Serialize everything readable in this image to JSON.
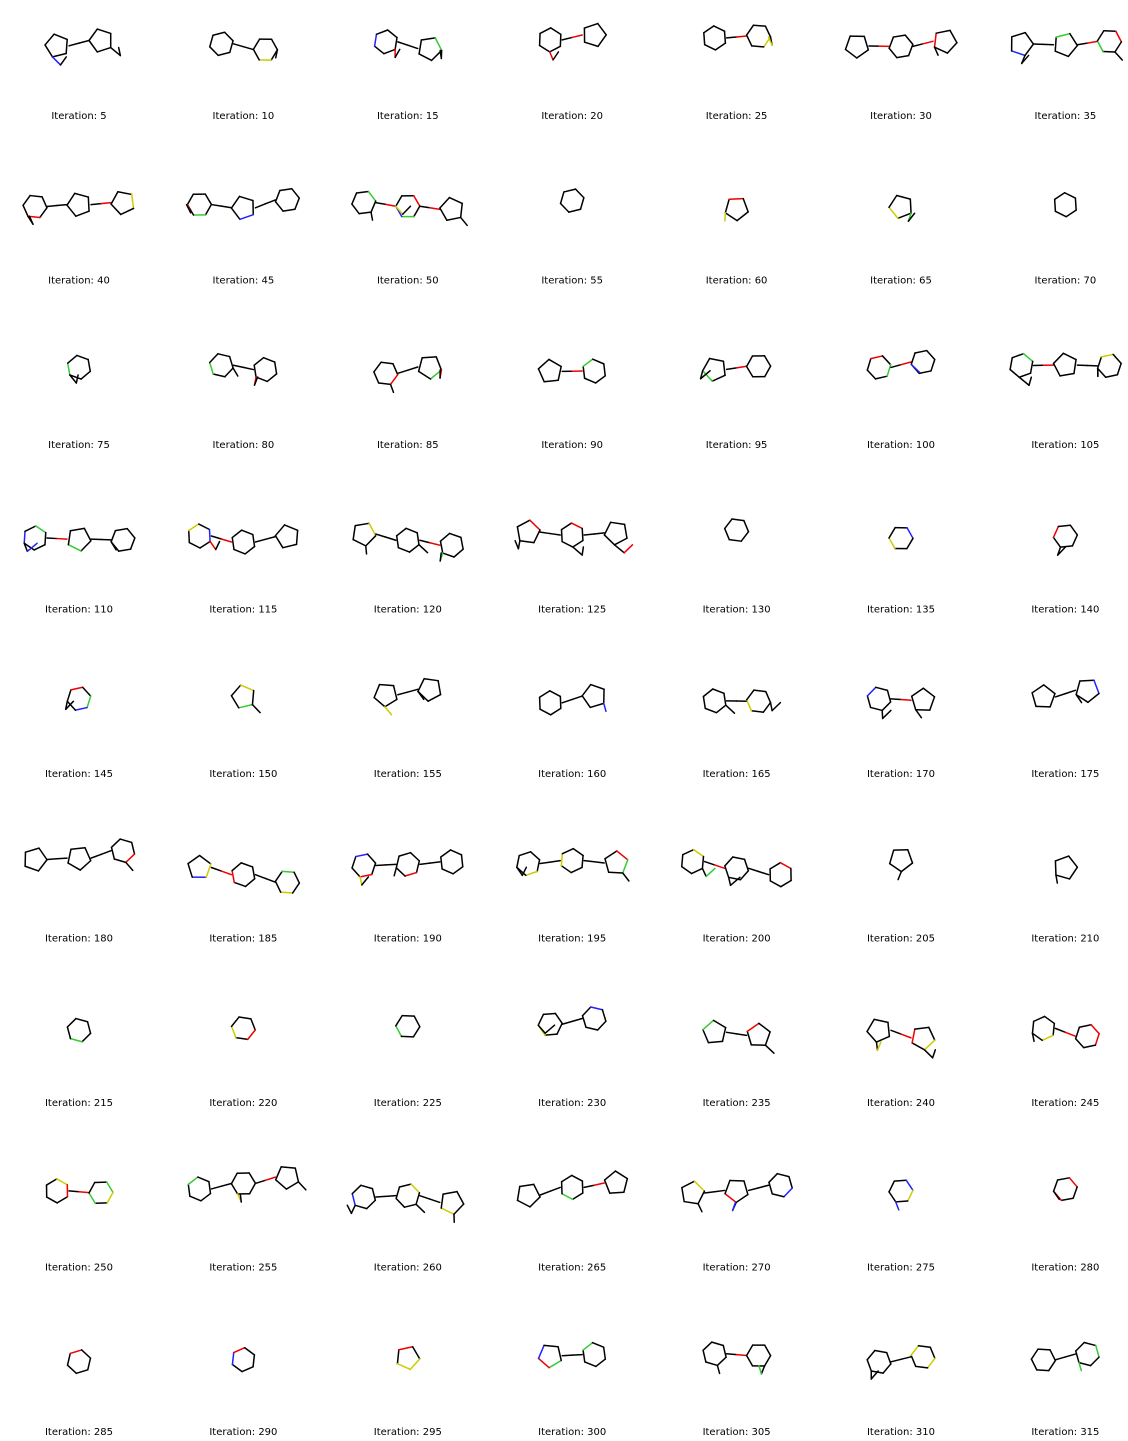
{
  "cells": [
    {
      "caption": "Iteration: 5"
    },
    {
      "caption": "Iteration: 10"
    },
    {
      "caption": "Iteration: 15"
    },
    {
      "caption": "Iteration: 20"
    },
    {
      "caption": "Iteration: 25"
    },
    {
      "caption": "Iteration: 30"
    },
    {
      "caption": "Iteration: 35"
    },
    {
      "caption": "Iteration: 40"
    },
    {
      "caption": "Iteration: 45"
    },
    {
      "caption": "Iteration: 50"
    },
    {
      "caption": "Iteration: 55"
    },
    {
      "caption": "Iteration: 60"
    },
    {
      "caption": "Iteration: 65"
    },
    {
      "caption": "Iteration: 70"
    },
    {
      "caption": "Iteration: 75"
    },
    {
      "caption": "Iteration: 80"
    },
    {
      "caption": "Iteration: 85"
    },
    {
      "caption": "Iteration: 90"
    },
    {
      "caption": "Iteration: 95"
    },
    {
      "caption": "Iteration: 100"
    },
    {
      "caption": "Iteration: 105"
    },
    {
      "caption": "Iteration: 110"
    },
    {
      "caption": "Iteration: 115"
    },
    {
      "caption": "Iteration: 120"
    },
    {
      "caption": "Iteration: 125"
    },
    {
      "caption": "Iteration: 130"
    },
    {
      "caption": "Iteration: 135"
    },
    {
      "caption": "Iteration: 140"
    },
    {
      "caption": "Iteration: 145"
    },
    {
      "caption": "Iteration: 150"
    },
    {
      "caption": "Iteration: 155"
    },
    {
      "caption": "Iteration: 160"
    },
    {
      "caption": "Iteration: 165"
    },
    {
      "caption": "Iteration: 170"
    },
    {
      "caption": "Iteration: 175"
    },
    {
      "caption": "Iteration: 180"
    },
    {
      "caption": "Iteration: 185"
    },
    {
      "caption": "Iteration: 190"
    },
    {
      "caption": "Iteration: 195"
    },
    {
      "caption": "Iteration: 200"
    },
    {
      "caption": "Iteration: 205"
    },
    {
      "caption": "Iteration: 210"
    },
    {
      "caption": "Iteration: 215"
    },
    {
      "caption": "Iteration: 220"
    },
    {
      "caption": "Iteration: 225"
    },
    {
      "caption": "Iteration: 230"
    },
    {
      "caption": "Iteration: 235"
    },
    {
      "caption": "Iteration: 240"
    },
    {
      "caption": "Iteration: 245"
    },
    {
      "caption": "Iteration: 250"
    },
    {
      "caption": "Iteration: 255"
    },
    {
      "caption": "Iteration: 260"
    },
    {
      "caption": "Iteration: 265"
    },
    {
      "caption": "Iteration: 270"
    },
    {
      "caption": "Iteration: 275"
    },
    {
      "caption": "Iteration: 280"
    },
    {
      "caption": "Iteration: 285"
    },
    {
      "caption": "Iteration: 290"
    },
    {
      "caption": "Iteration: 295"
    },
    {
      "caption": "Iteration: 300"
    },
    {
      "caption": "Iteration: 305"
    },
    {
      "caption": "Iteration: 310"
    },
    {
      "caption": "Iteration: 315"
    }
  ]
}
